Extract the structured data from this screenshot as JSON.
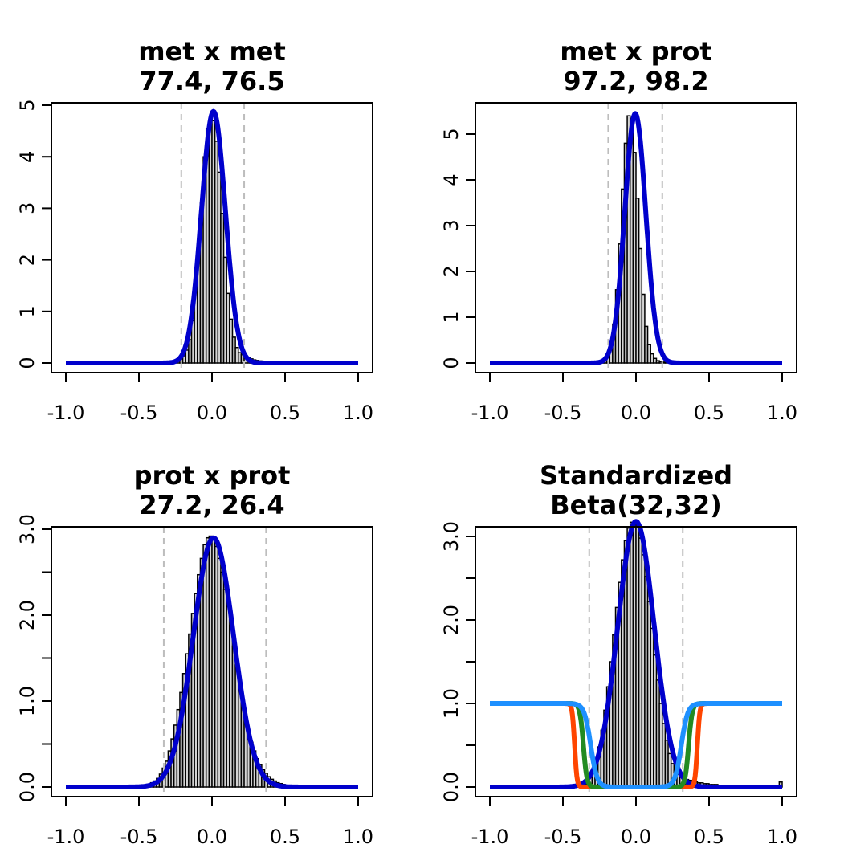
{
  "chart_data": [
    {
      "type": "histogram",
      "title": [
        "met x met",
        "77.4, 76.5"
      ],
      "xlim": [
        -1.0,
        1.0
      ],
      "ylim": [
        0,
        5
      ],
      "x_ticks": [
        -1.0,
        -0.5,
        0.0,
        0.5,
        1.0
      ],
      "x_tick_labels": [
        "-1.0",
        "-0.5",
        "0.0",
        "0.5",
        "1.0"
      ],
      "y_ticks": [
        0,
        1,
        2,
        3,
        4,
        5
      ],
      "y_tick_labels": [
        "0",
        "1",
        "2",
        "3",
        "4",
        "5"
      ],
      "vlines": [
        -0.21,
        0.22
      ],
      "hist": {
        "start": -0.3,
        "width": 0.02,
        "heights": [
          0.01,
          0.02,
          0.03,
          0.05,
          0.08,
          0.14,
          0.25,
          0.45,
          0.82,
          1.4,
          2.2,
          3.1,
          4.0,
          4.55,
          4.72,
          4.7,
          4.3,
          3.7,
          2.9,
          2.05,
          1.35,
          0.85,
          0.5,
          0.3,
          0.2,
          0.16,
          0.13,
          0.1,
          0.08,
          0.06,
          0.05,
          0.04,
          0.03,
          0.03,
          0.02,
          0.02,
          0.01,
          0.01,
          0.01,
          0.01
        ]
      },
      "series": [
        {
          "type": "normal",
          "mean": 0.01,
          "sd": 0.082,
          "peak": 4.88,
          "color": "#0000cc"
        }
      ]
    },
    {
      "type": "histogram",
      "title": [
        "met x prot",
        "97.2, 98.2"
      ],
      "xlim": [
        -1.0,
        1.0
      ],
      "ylim": [
        0,
        5.5
      ],
      "x_ticks": [
        -1.0,
        -0.5,
        0.0,
        0.5,
        1.0
      ],
      "x_tick_labels": [
        "-1.0",
        "-0.5",
        "0.0",
        "0.5",
        "1.0"
      ],
      "y_ticks": [
        0,
        1,
        2,
        3,
        4,
        5
      ],
      "y_tick_labels": [
        "0",
        "1",
        "2",
        "3",
        "4",
        "5"
      ],
      "vlines": [
        -0.19,
        0.18
      ],
      "hist": {
        "start": -0.26,
        "width": 0.02,
        "heights": [
          0.01,
          0.03,
          0.08,
          0.18,
          0.4,
          0.85,
          1.6,
          2.6,
          3.8,
          4.8,
          5.4,
          5.3,
          4.6,
          3.6,
          2.5,
          1.5,
          0.8,
          0.4,
          0.2,
          0.1,
          0.05,
          0.03,
          0.02,
          0.01,
          0.01,
          0.01
        ]
      },
      "series": [
        {
          "type": "normal",
          "mean": -0.005,
          "sd": 0.072,
          "peak": 5.45,
          "color": "#0000cc"
        }
      ]
    },
    {
      "type": "histogram",
      "title": [
        "prot x prot",
        "27.2, 26.4"
      ],
      "xlim": [
        -1.0,
        1.0
      ],
      "ylim": [
        0,
        3.0
      ],
      "x_ticks": [
        -1.0,
        -0.5,
        0.0,
        0.5,
        1.0
      ],
      "x_tick_labels": [
        "-1.0",
        "-0.5",
        "0.0",
        "0.5",
        "1.0"
      ],
      "y_ticks": [
        0,
        1.0,
        2.0,
        3.0
      ],
      "y_tick_labels": [
        "0.0",
        "1.0",
        "2.0",
        "3.0"
      ],
      "vlines": [
        -0.33,
        0.37
      ],
      "hist": {
        "start": -0.5,
        "width": 0.02,
        "heights": [
          0.01,
          0.01,
          0.02,
          0.03,
          0.05,
          0.07,
          0.1,
          0.15,
          0.22,
          0.3,
          0.42,
          0.56,
          0.72,
          0.9,
          1.1,
          1.32,
          1.55,
          1.78,
          2.02,
          2.25,
          2.47,
          2.66,
          2.82,
          2.9,
          2.92,
          2.88,
          2.8,
          2.66,
          2.5,
          2.3,
          2.1,
          1.88,
          1.64,
          1.42,
          1.2,
          0.98,
          0.8,
          0.65,
          0.52,
          0.42,
          0.33,
          0.26,
          0.2,
          0.16,
          0.12,
          0.09,
          0.07,
          0.05,
          0.04,
          0.03,
          0.02,
          0.02,
          0.01,
          0.01,
          0.01,
          0.01
        ]
      },
      "series": [
        {
          "type": "normal",
          "mean": 0.01,
          "sd": 0.138,
          "peak": 2.9,
          "color": "#0000cc"
        }
      ]
    },
    {
      "type": "histogram",
      "title": [
        "Standardized",
        "Beta(32,32)"
      ],
      "xlim": [
        -1.0,
        1.0
      ],
      "ylim": [
        0,
        3.2
      ],
      "x_ticks": [
        -1.0,
        -0.5,
        0.0,
        0.5,
        1.0
      ],
      "x_tick_labels": [
        "-1.0",
        "-0.5",
        "0.0",
        "0.5",
        "1.0"
      ],
      "y_ticks": [
        0,
        1.0,
        2.0,
        3.0
      ],
      "y_tick_labels": [
        "0.0",
        "1.0",
        "2.0",
        "3.0"
      ],
      "vlines": [
        -0.32,
        0.32
      ],
      "hist": {
        "start": -0.4,
        "width": 0.02,
        "heights": [
          0.01,
          0.02,
          0.04,
          0.07,
          0.12,
          0.2,
          0.32,
          0.48,
          0.68,
          0.92,
          1.2,
          1.5,
          1.82,
          2.15,
          2.45,
          2.72,
          2.95,
          3.1,
          3.17,
          3.18,
          3.12,
          2.98,
          2.78,
          2.52,
          2.22,
          1.9,
          1.58,
          1.28,
          1.0,
          0.76,
          0.56,
          0.4,
          0.28,
          0.2,
          0.15,
          0.12,
          0.1,
          0.09,
          0.08,
          0.07,
          0.06,
          0.05,
          0.05,
          0.04,
          0.04,
          0.03,
          0.03,
          0.03,
          0.02,
          0.02,
          0.02,
          0.02,
          0.02,
          0.01,
          0.01,
          0.01,
          0.01,
          0.01,
          0.01,
          0.01
        ]
      },
      "extra_bars": [
        {
          "x": 0.99,
          "width": 0.02,
          "height": 0.06
        }
      ],
      "series": [
        {
          "type": "normal",
          "mean": 0.0,
          "sd": 0.125,
          "peak": 3.18,
          "color": "#0000cc"
        },
        {
          "type": "sigmoid",
          "low": -0.42,
          "high": 0.42,
          "steep": 0.008,
          "color": "#ff4500"
        },
        {
          "type": "sigmoid",
          "low": -0.36,
          "high": 0.36,
          "steep": 0.012,
          "color": "#228b22"
        },
        {
          "type": "sigmoid",
          "low": -0.31,
          "high": 0.31,
          "steep": 0.022,
          "color": "#1e90ff"
        }
      ]
    }
  ]
}
